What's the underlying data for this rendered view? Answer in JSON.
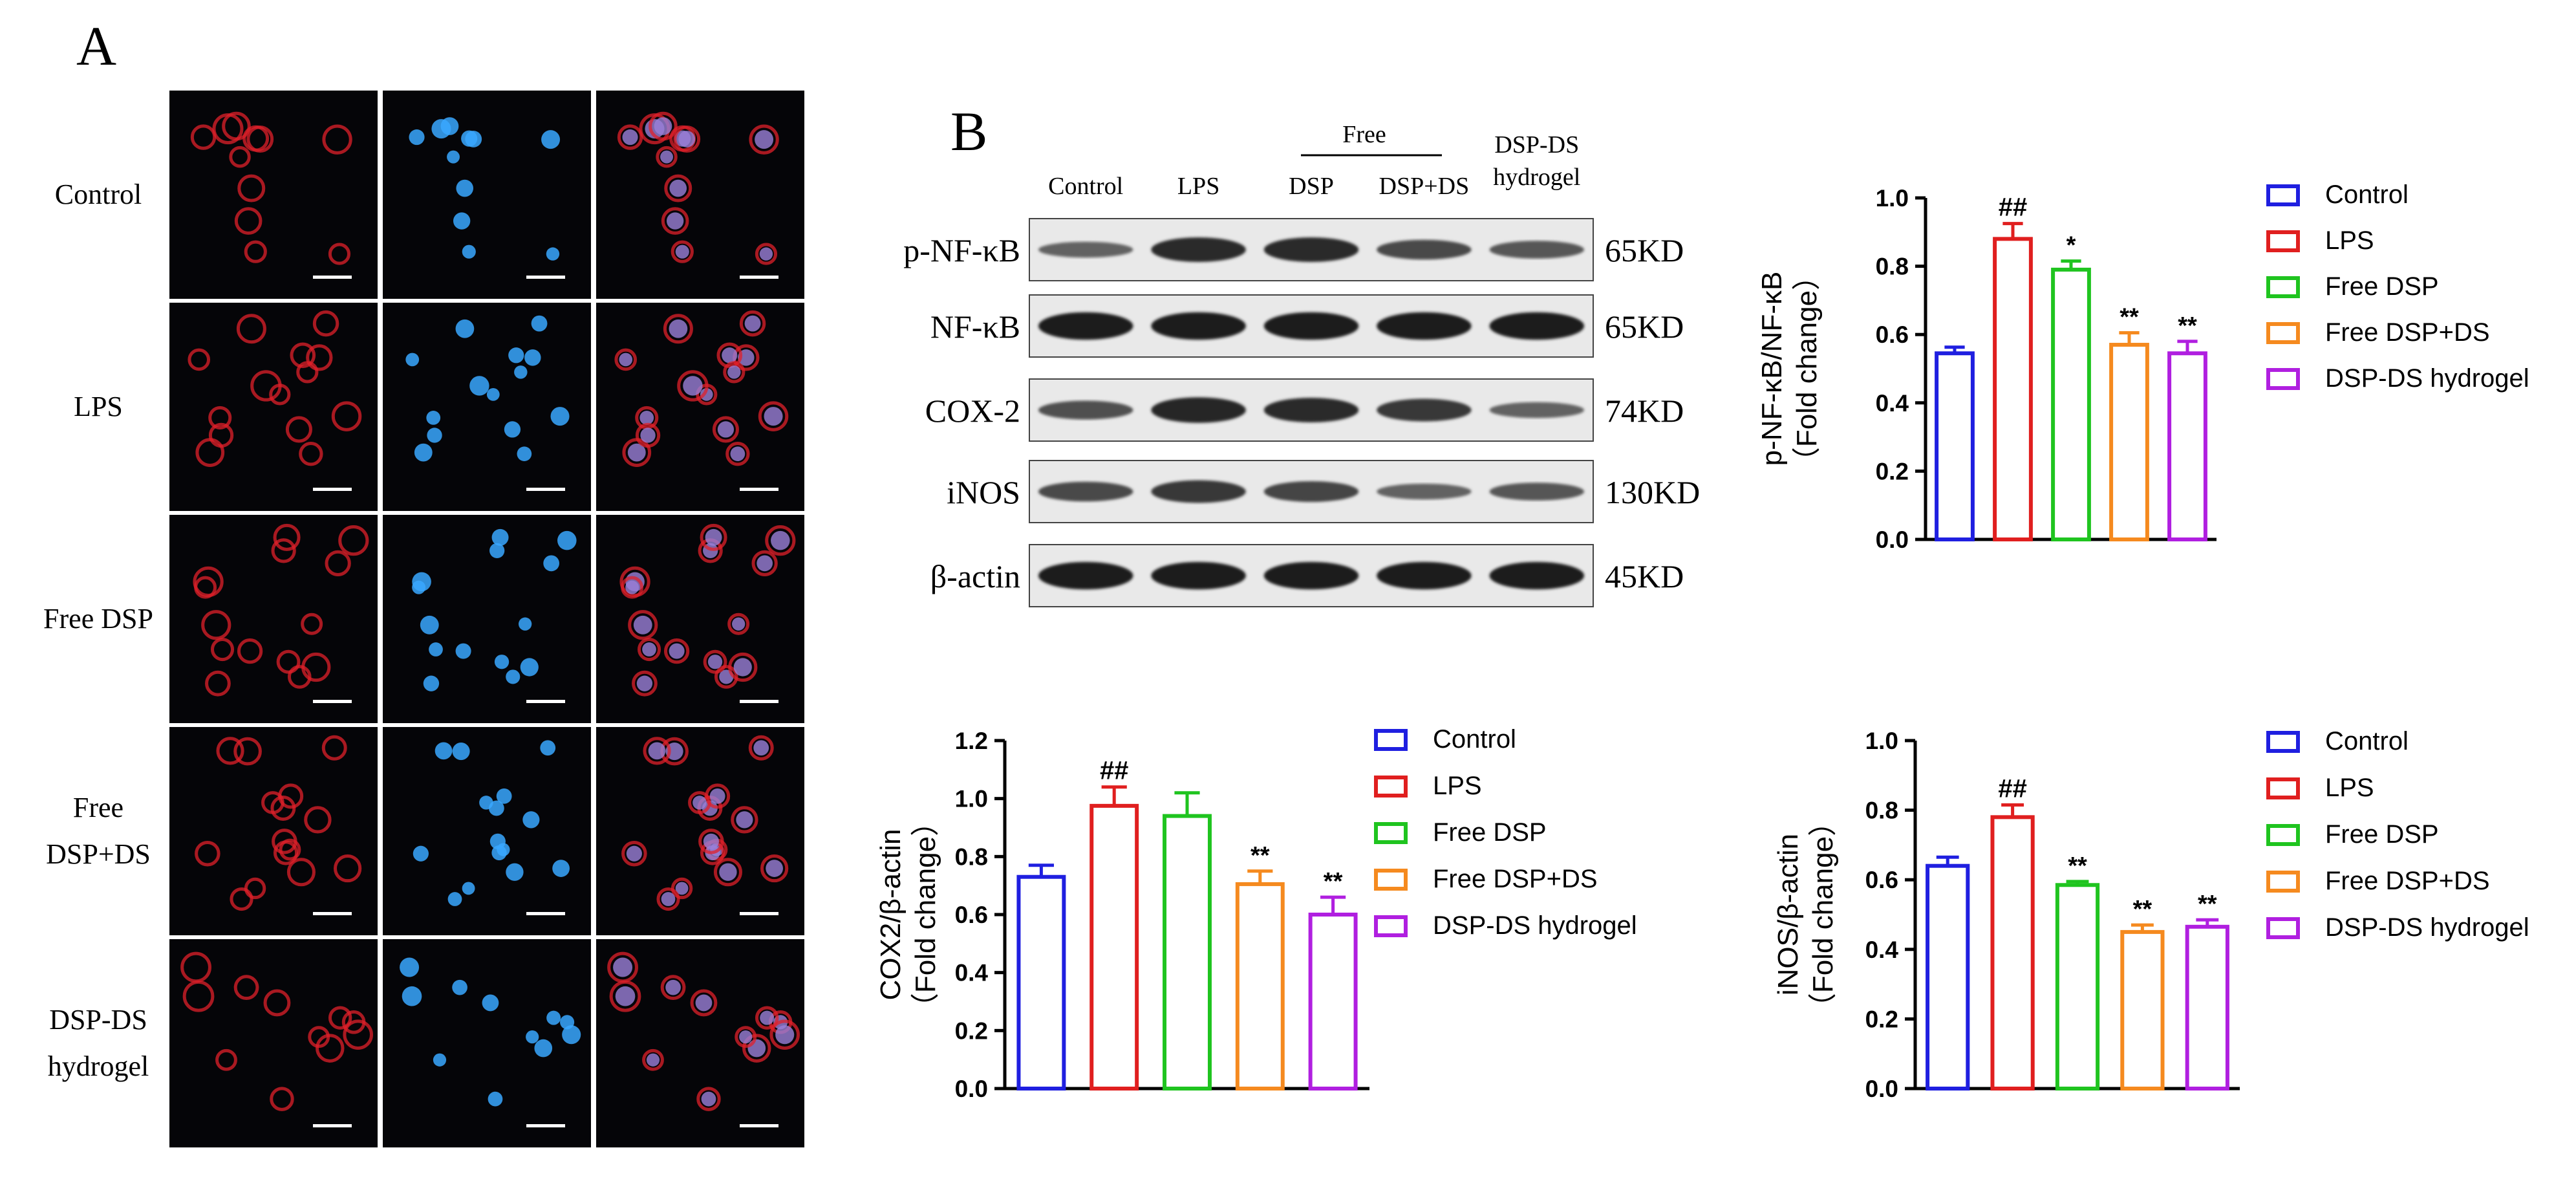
{
  "panel_a": {
    "label": "A",
    "rows": [
      "Control",
      "LPS",
      "Free DSP",
      "Free\nDSP+DS",
      "DSP-DS\nhydrogel"
    ],
    "cell_density": [
      0.55,
      0.85,
      0.9,
      0.95,
      0.6
    ]
  },
  "panel_b": {
    "label": "B",
    "free_group_label": "Free",
    "lanes": [
      "Control",
      "LPS",
      "DSP",
      "DSP+DS",
      "DSP-DS\nhydrogel"
    ],
    "blots": [
      {
        "name": "p-NF-κB",
        "size": "65KD",
        "intensity": [
          0.35,
          0.8,
          0.8,
          0.55,
          0.45
        ]
      },
      {
        "name": "NF-κB",
        "size": "65KD",
        "intensity": [
          0.95,
          0.95,
          0.95,
          0.95,
          0.95
        ]
      },
      {
        "name": "COX-2",
        "size": "74KD",
        "intensity": [
          0.5,
          0.85,
          0.8,
          0.7,
          0.35
        ]
      },
      {
        "name": "iNOS",
        "size": "130KD",
        "intensity": [
          0.55,
          0.7,
          0.6,
          0.35,
          0.45
        ]
      },
      {
        "name": "β-actin",
        "size": "45KD",
        "intensity": [
          0.95,
          0.95,
          0.95,
          0.95,
          0.95
        ]
      }
    ]
  },
  "colors": {
    "Control": "#1f1fe0",
    "LPS": "#e01f1f",
    "Free DSP": "#1fc41f",
    "Free DSP+DS": "#f58a1f",
    "DSP-DS hydrogel": "#b01fe0",
    "red_channel": "#e0202a",
    "blue_channel": "#3aa8ff"
  },
  "chart_data": [
    {
      "type": "bar",
      "categories": [
        "Control",
        "LPS",
        "Free DSP",
        "Free DSP+DS",
        "DSP-DS hydrogel"
      ],
      "values": [
        0.545,
        0.88,
        0.79,
        0.57,
        0.545
      ],
      "errors": [
        0.018,
        0.045,
        0.025,
        0.035,
        0.035
      ],
      "annotations": [
        "",
        "##",
        "*",
        "**",
        "**"
      ],
      "ylabel": [
        "p-NF-κB/NF-κB",
        "（Fold change）"
      ],
      "ylim": [
        0,
        1.0
      ],
      "yticks": [
        "0.0",
        "0.2",
        "0.4",
        "0.6",
        "0.8",
        "1.0"
      ],
      "legend": [
        "Control",
        "LPS",
        "Free DSP",
        "Free DSP+DS",
        "DSP-DS hydrogel"
      ],
      "legend_position": "right"
    },
    {
      "type": "bar",
      "categories": [
        "Control",
        "LPS",
        "Free DSP",
        "Free DSP+DS",
        "DSP-DS hydrogel"
      ],
      "values": [
        0.73,
        0.975,
        0.94,
        0.705,
        0.6
      ],
      "errors": [
        0.04,
        0.065,
        0.08,
        0.045,
        0.06
      ],
      "annotations": [
        "",
        "##",
        "",
        "**",
        "**"
      ],
      "ylabel": [
        "COX2/β-actin",
        "（Fold change）"
      ],
      "ylim": [
        0,
        1.2
      ],
      "yticks": [
        "0.0",
        "0.2",
        "0.4",
        "0.6",
        "0.8",
        "1.0",
        "1.2"
      ],
      "legend": [
        "Control",
        "LPS",
        "Free DSP",
        "Free DSP+DS",
        "DSP-DS hydrogel"
      ],
      "legend_position": "right"
    },
    {
      "type": "bar",
      "categories": [
        "Control",
        "LPS",
        "Free DSP",
        "Free DSP+DS",
        "DSP-DS hydrogel"
      ],
      "values": [
        0.64,
        0.78,
        0.585,
        0.45,
        0.465
      ],
      "errors": [
        0.025,
        0.035,
        0.01,
        0.02,
        0.02
      ],
      "annotations": [
        "",
        "##",
        "**",
        "**",
        "**"
      ],
      "ylabel": [
        "iNOS/β-actin",
        "（Fold change）"
      ],
      "ylim": [
        0,
        1.0
      ],
      "yticks": [
        "0.0",
        "0.2",
        "0.4",
        "0.6",
        "0.8",
        "1.0"
      ],
      "legend": [
        "Control",
        "LPS",
        "Free DSP",
        "Free DSP+DS",
        "DSP-DS hydrogel"
      ],
      "legend_position": "right"
    }
  ]
}
